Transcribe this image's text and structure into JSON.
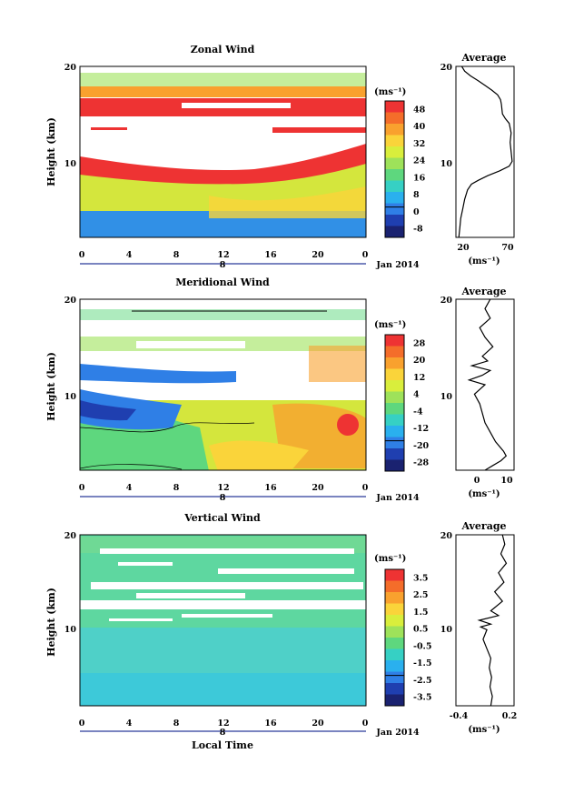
{
  "chart_data": [
    {
      "type": "heatmap",
      "title": "Zonal Wind",
      "ylabel": "Height (km)",
      "xlabel": "",
      "x_ticks": [
        "0",
        "4",
        "8",
        "12",
        "16",
        "20",
        "0"
      ],
      "y_ticks": [
        "20",
        "10"
      ],
      "ylim": [
        2,
        20
      ],
      "date_marker": "8",
      "date_label": "Jan 2014",
      "colorbar": {
        "unit": "(ms⁻¹)",
        "levels": [
          "48",
          "40",
          "32",
          "24",
          "16",
          "8",
          "0",
          "-8"
        ],
        "colors": [
          "#ee3333",
          "#f46d2a",
          "#f9a12e",
          "#fad43a",
          "#d9ee3c",
          "#9ee25a",
          "#5ed77e",
          "#36d0c4",
          "#2ab0ee",
          "#2f7fe6",
          "#1f3fb0",
          "#1a2270"
        ]
      },
      "profile": {
        "title": "Average",
        "x_ticks": [
          "20",
          "70"
        ],
        "xlim": [
          15,
          75
        ],
        "unit": "(ms⁻¹)",
        "y_ticks": [
          "20",
          "10"
        ],
        "points": [
          [
            18,
            2
          ],
          [
            19,
            3
          ],
          [
            20,
            4
          ],
          [
            22,
            5
          ],
          [
            24,
            6
          ],
          [
            27,
            7
          ],
          [
            31,
            7.6
          ],
          [
            38,
            8
          ],
          [
            48,
            8.5
          ],
          [
            60,
            9
          ],
          [
            70,
            9.5
          ],
          [
            73,
            10
          ],
          [
            72,
            11
          ],
          [
            71,
            12
          ],
          [
            72,
            13
          ],
          [
            70,
            14
          ],
          [
            66,
            14.5
          ],
          [
            63,
            15
          ],
          [
            62,
            16
          ],
          [
            61,
            16.5
          ],
          [
            58,
            17
          ],
          [
            52,
            17.5
          ],
          [
            45,
            18
          ],
          [
            38,
            18.5
          ],
          [
            30,
            19
          ],
          [
            24,
            19.5
          ],
          [
            21,
            20
          ]
        ]
      }
    },
    {
      "type": "heatmap",
      "title": "Meridional Wind",
      "ylabel": "Height (km)",
      "xlabel": "",
      "x_ticks": [
        "0",
        "4",
        "8",
        "12",
        "16",
        "20",
        "0"
      ],
      "y_ticks": [
        "20",
        "10"
      ],
      "ylim": [
        2,
        20
      ],
      "date_marker": "8",
      "date_label": "Jan 2014",
      "colorbar": {
        "unit": "(ms⁻¹)",
        "levels": [
          "28",
          "20",
          "12",
          "4",
          "-4",
          "-12",
          "-20",
          "-28"
        ],
        "colors": [
          "#ee3333",
          "#f46d2a",
          "#f9a12e",
          "#fad43a",
          "#d9ee3c",
          "#9ee25a",
          "#5ed77e",
          "#36d0c4",
          "#2ab0ee",
          "#2f7fe6",
          "#1f3fb0",
          "#1a2270"
        ]
      },
      "profile": {
        "title": "Average",
        "x_ticks": [
          "0",
          "10"
        ],
        "xlim": [
          -8,
          14
        ],
        "unit": "(ms⁻¹)",
        "y_ticks": [
          "20",
          "10"
        ],
        "points": [
          [
            3,
            2
          ],
          [
            6,
            2.5
          ],
          [
            9,
            3
          ],
          [
            11,
            3.5
          ],
          [
            10,
            4
          ],
          [
            7,
            5
          ],
          [
            5,
            6
          ],
          [
            3,
            7
          ],
          [
            2,
            8
          ],
          [
            1,
            9
          ],
          [
            -1,
            10
          ],
          [
            1,
            10.5
          ],
          [
            3,
            11
          ],
          [
            -3,
            11.5
          ],
          [
            2,
            12
          ],
          [
            5,
            12.5
          ],
          [
            -2,
            13
          ],
          [
            4,
            13.5
          ],
          [
            2,
            14
          ],
          [
            6,
            15
          ],
          [
            3,
            16
          ],
          [
            1,
            17
          ],
          [
            5,
            18
          ],
          [
            3,
            19
          ],
          [
            5,
            20
          ]
        ]
      }
    },
    {
      "type": "heatmap",
      "title": "Vertical Wind",
      "ylabel": "Height (km)",
      "xlabel": "Local Time",
      "x_ticks": [
        "0",
        "4",
        "8",
        "12",
        "16",
        "20",
        "0"
      ],
      "y_ticks": [
        "20",
        "10"
      ],
      "ylim": [
        2,
        20
      ],
      "date_marker": "8",
      "date_label": "Jan 2014",
      "colorbar": {
        "unit": "(ms⁻¹)",
        "levels": [
          "3.5",
          "2.5",
          "1.5",
          "0.5",
          "-0.5",
          "-1.5",
          "-2.5",
          "-3.5"
        ],
        "colors": [
          "#ee3333",
          "#f46d2a",
          "#f9a12e",
          "#fad43a",
          "#d9ee3c",
          "#9ee25a",
          "#5ed77e",
          "#36d0c4",
          "#2ab0ee",
          "#2f7fe6",
          "#1f3fb0",
          "#1a2270"
        ]
      },
      "profile": {
        "title": "Average",
        "x_ticks": [
          "-0.4",
          "0.2"
        ],
        "xlim": [
          -0.5,
          0.25
        ],
        "unit": "(ms⁻¹)",
        "y_ticks": [
          "20",
          "10"
        ],
        "points": [
          [
            -0.05,
            2
          ],
          [
            -0.03,
            3
          ],
          [
            -0.06,
            4
          ],
          [
            -0.04,
            5
          ],
          [
            -0.07,
            6
          ],
          [
            -0.05,
            7
          ],
          [
            -0.1,
            8
          ],
          [
            -0.15,
            9
          ],
          [
            -0.1,
            10
          ],
          [
            -0.18,
            10.3
          ],
          [
            -0.05,
            10.6
          ],
          [
            -0.2,
            11
          ],
          [
            0.05,
            11.5
          ],
          [
            -0.05,
            12
          ],
          [
            0.1,
            13
          ],
          [
            0.0,
            14
          ],
          [
            0.12,
            15
          ],
          [
            0.05,
            16
          ],
          [
            0.15,
            17
          ],
          [
            0.08,
            18
          ],
          [
            0.13,
            19
          ],
          [
            0.1,
            20
          ]
        ]
      }
    }
  ]
}
